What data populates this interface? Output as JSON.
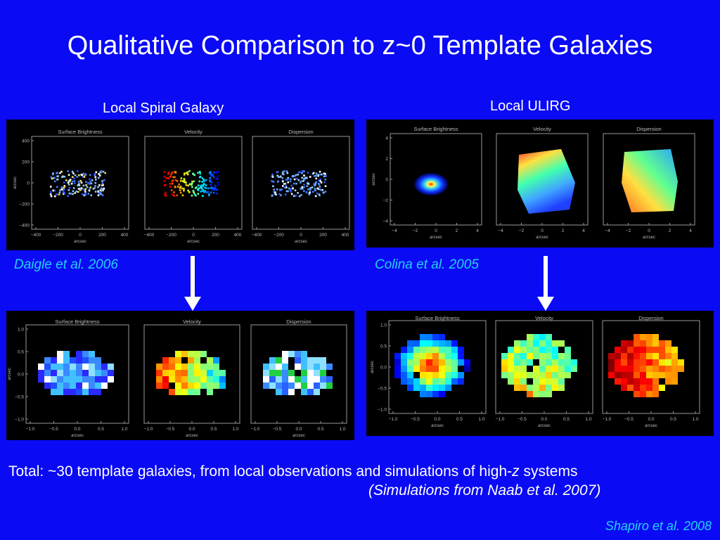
{
  "slide": {
    "title": "Qualitative Comparison to z~0 Template Galaxies",
    "left_label": "Local Spiral Galaxy",
    "right_label": "Local ULIRG",
    "left_citation": "Daigle et al. 2006",
    "right_citation": "Colina et al. 2005",
    "footer_text_before": "Total: ~30 template galaxies, from local observations and simulations of high-",
    "footer_z": "z",
    "footer_text_after": " systems",
    "footer_note": "(Simulations from Naab et al. 2007)",
    "credit": "Shapiro et al. 2008"
  },
  "figures": {
    "map_titles": [
      "Surface Brightness",
      "Velocity",
      "Dispersion"
    ],
    "axis_label": "arcsec",
    "spiral_top": {
      "x_ticks": [
        "−400",
        "−200",
        "0",
        "200",
        "400"
      ],
      "y_ticks": [
        "400",
        "200",
        "0",
        "−200",
        "−400"
      ]
    },
    "ulirg_top": {
      "x_ticks": [
        "−4",
        "−2",
        "0",
        "2",
        "4"
      ],
      "y_ticks": [
        "4",
        "2",
        "0",
        "−2",
        "−4"
      ]
    },
    "simulated": {
      "x_ticks": [
        "−1.0",
        "−0.5",
        "0.0",
        "0.5",
        "1.0"
      ],
      "y_ticks": [
        "1.0",
        "0.5",
        "0.0",
        "−0.5",
        "−1.0"
      ]
    }
  },
  "colors": {
    "background": "#0a0af5",
    "citation": "#22d3f5",
    "panel": "#000000"
  }
}
